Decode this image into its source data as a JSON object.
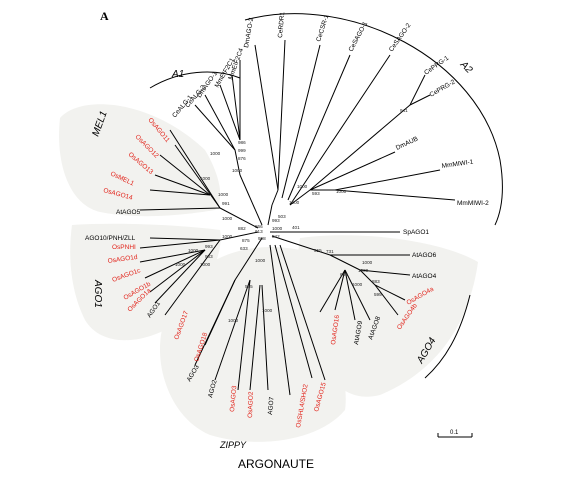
{
  "figure": {
    "panel_label": "A",
    "scale_label": "0.1",
    "colors": {
      "rice": "#e2231a",
      "other": "#000000",
      "clade_fill": "#f2f2ef"
    }
  },
  "groups": {
    "A1": "A1",
    "A2": "A2",
    "MEL1": "MEL1",
    "AGO1": "AGO1",
    "AGO4": "AGO4",
    "ZIPPY": "ZIPPY",
    "ARGONAUTE": "ARGONAUTE"
  },
  "leaves": [
    {
      "id": "l00",
      "text": "DmAGO-2",
      "rice": false
    },
    {
      "id": "l01",
      "text": "CeRDR1",
      "rice": false
    },
    {
      "id": "l02",
      "text": "CeCSR-1",
      "rice": false
    },
    {
      "id": "l03",
      "text": "CeSAGO-1",
      "rice": false
    },
    {
      "id": "l04",
      "text": "CeSAGO-2",
      "rice": false
    },
    {
      "id": "l05",
      "text": "CePRG-1",
      "rice": false
    },
    {
      "id": "l06",
      "text": "CePRG-2",
      "rice": false
    },
    {
      "id": "l07",
      "text": "DmAUB",
      "rice": false
    },
    {
      "id": "l08",
      "text": "MmMIWI-1",
      "rice": false
    },
    {
      "id": "l09",
      "text": "MmMIWI-2",
      "rice": false
    },
    {
      "id": "l10",
      "text": "SpAGO1",
      "rice": false
    },
    {
      "id": "l11",
      "text": "AtAGO6",
      "rice": false
    },
    {
      "id": "l12",
      "text": "AtAGO4",
      "rice": false
    },
    {
      "id": "l13",
      "text": "OsAGO4a",
      "rice": true
    },
    {
      "id": "l14",
      "text": "OsAGO4b",
      "rice": true
    },
    {
      "id": "l15",
      "text": "AtAGO8",
      "rice": false
    },
    {
      "id": "l16",
      "text": "AtAGO9",
      "rice": false
    },
    {
      "id": "l17",
      "text": "OsAGO16",
      "rice": true
    },
    {
      "id": "l18",
      "text": "OsAGO15",
      "rice": true
    },
    {
      "id": "l19",
      "text": "OsSHL4/SHO2",
      "rice": true
    },
    {
      "id": "l20",
      "text": "AGO7",
      "rice": false
    },
    {
      "id": "l21",
      "text": "OsAGO2",
      "rice": true
    },
    {
      "id": "l22",
      "text": "OsAGO3",
      "rice": true
    },
    {
      "id": "l23",
      "text": "AGO2",
      "rice": false
    },
    {
      "id": "l24",
      "text": "AGO3",
      "rice": false
    },
    {
      "id": "l25",
      "text": "OsAGO18",
      "rice": true
    },
    {
      "id": "l26",
      "text": "OsAGO17",
      "rice": true
    },
    {
      "id": "l27",
      "text": "AGO1",
      "rice": false
    },
    {
      "id": "l28",
      "text": "OsAGO1a",
      "rice": true
    },
    {
      "id": "l29",
      "text": "OsAGO1b",
      "rice": true
    },
    {
      "id": "l30",
      "text": "OsAGO1c",
      "rice": true
    },
    {
      "id": "l31",
      "text": "OsAGO1d",
      "rice": true
    },
    {
      "id": "l32",
      "text": "OsPNHI",
      "rice": true
    },
    {
      "id": "l33",
      "text": "AGO10/PNH/ZLL",
      "rice": false
    },
    {
      "id": "l34",
      "text": "AtAGO5",
      "rice": false
    },
    {
      "id": "l35",
      "text": "OsAGO14",
      "rice": true
    },
    {
      "id": "l36",
      "text": "OsMEL1",
      "rice": true
    },
    {
      "id": "l37",
      "text": "OsAGO13",
      "rice": true
    },
    {
      "id": "l38",
      "text": "OsAGO12",
      "rice": true
    },
    {
      "id": "l39",
      "text": "OsAGO11",
      "rice": true
    },
    {
      "id": "l40",
      "text": "CeALG-1",
      "rice": false
    },
    {
      "id": "l41",
      "text": "CeALG-2",
      "rice": false
    },
    {
      "id": "l42",
      "text": "DmAGO-1",
      "rice": false
    },
    {
      "id": "l43",
      "text": "MmEIF2C1",
      "rice": false
    },
    {
      "id": "l44",
      "text": "MmEIF2C4",
      "rice": false
    }
  ],
  "bootstrap": [
    {
      "id": "b01",
      "text": "986"
    },
    {
      "id": "b02",
      "text": "999"
    },
    {
      "id": "b03",
      "text": "876"
    },
    {
      "id": "b04",
      "text": "1000"
    },
    {
      "id": "b05",
      "text": "1000"
    },
    {
      "id": "b06",
      "text": "1000"
    },
    {
      "id": "b07",
      "text": "1000"
    },
    {
      "id": "b08",
      "text": "991"
    },
    {
      "id": "b09",
      "text": "1000"
    },
    {
      "id": "b10",
      "text": "882"
    },
    {
      "id": "b11",
      "text": "1000"
    },
    {
      "id": "b12",
      "text": "875"
    },
    {
      "id": "b13",
      "text": "1000"
    },
    {
      "id": "b14",
      "text": "993"
    },
    {
      "id": "b15",
      "text": "983"
    },
    {
      "id": "b16",
      "text": "1000"
    },
    {
      "id": "b17",
      "text": "1000"
    },
    {
      "id": "b18",
      "text": "866"
    },
    {
      "id": "b19",
      "text": "998"
    },
    {
      "id": "b20",
      "text": "1000"
    },
    {
      "id": "b21",
      "text": "993"
    },
    {
      "id": "b22",
      "text": "1000"
    },
    {
      "id": "b23",
      "text": "1000"
    },
    {
      "id": "b24",
      "text": "593"
    },
    {
      "id": "b25",
      "text": "1000"
    },
    {
      "id": "b26",
      "text": "941"
    },
    {
      "id": "b27",
      "text": "503"
    },
    {
      "id": "b28",
      "text": "401"
    },
    {
      "id": "b29",
      "text": "731"
    },
    {
      "id": "b30",
      "text": "1000"
    },
    {
      "id": "b31",
      "text": "883"
    },
    {
      "id": "b32",
      "text": "1000"
    },
    {
      "id": "b33",
      "text": "595"
    },
    {
      "id": "b34",
      "text": "685"
    },
    {
      "id": "b35",
      "text": "1000"
    },
    {
      "id": "b36",
      "text": "1000"
    },
    {
      "id": "b37",
      "text": "1000"
    },
    {
      "id": "b38",
      "text": "565"
    },
    {
      "id": "b39",
      "text": "1000"
    },
    {
      "id": "b40",
      "text": "555"
    },
    {
      "id": "b41",
      "text": "613"
    },
    {
      "id": "b42",
      "text": "633"
    },
    {
      "id": "b43",
      "text": "842"
    }
  ]
}
